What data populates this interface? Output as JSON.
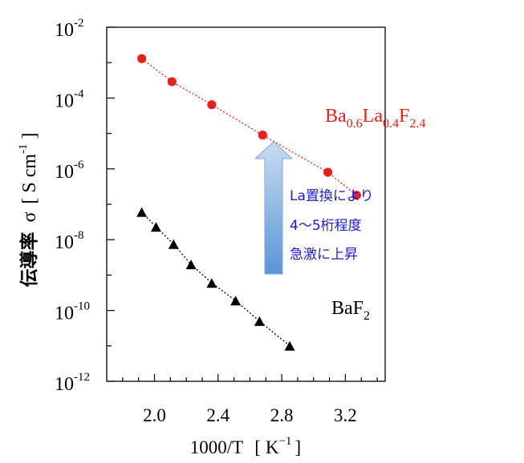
{
  "chart_data": {
    "type": "scatter",
    "x_label": "1000/T",
    "x_unit_base": "K",
    "x_unit_exp": "−1",
    "y_label_jp": "伝導率",
    "y_label_sym": "σ",
    "y_unit_base": "S cm",
    "y_unit_exp": "-1",
    "xlim": [
      1.7,
      3.45
    ],
    "ylim_exponent": [
      -12,
      -2
    ],
    "y_scale": "log",
    "x_ticks": [
      {
        "v": 2.0,
        "label": "2.0"
      },
      {
        "v": 2.4,
        "label": "2.4"
      },
      {
        "v": 2.8,
        "label": "2.8"
      },
      {
        "v": 3.2,
        "label": "3.2"
      }
    ],
    "y_ticks": [
      {
        "e": -2,
        "base": "10",
        "exp": "-2"
      },
      {
        "e": -4,
        "base": "10",
        "exp": "-4"
      },
      {
        "e": -6,
        "base": "10",
        "exp": "-6"
      },
      {
        "e": -8,
        "base": "10",
        "exp": "-8"
      },
      {
        "e": -10,
        "base": "10",
        "exp": "-10"
      },
      {
        "e": -12,
        "base": "10",
        "exp": "-12"
      }
    ],
    "series": [
      {
        "name_parts": [
          {
            "t": "Ba",
            "sub": false
          },
          {
            "t": "0.6",
            "sub": true
          },
          {
            "t": "La",
            "sub": false
          },
          {
            "t": "0.4",
            "sub": true
          },
          {
            "t": "F",
            "sub": false
          },
          {
            "t": "2.4",
            "sub": true
          }
        ],
        "marker": "circle",
        "color": "#e8201c",
        "points": [
          {
            "x": 1.92,
            "y": 0.0013
          },
          {
            "x": 2.11,
            "y": 0.00029
          },
          {
            "x": 2.36,
            "y": 6.5e-05
          },
          {
            "x": 2.68,
            "y": 9e-06
          },
          {
            "x": 3.09,
            "y": 8e-07
          },
          {
            "x": 3.27,
            "y": 1.8e-07
          }
        ]
      },
      {
        "name_parts": [
          {
            "t": "BaF",
            "sub": false
          },
          {
            "t": "2",
            "sub": true
          }
        ],
        "marker": "triangle",
        "color": "#000000",
        "points": [
          {
            "x": 1.92,
            "y": 6e-08
          },
          {
            "x": 2.01,
            "y": 2.3e-08
          },
          {
            "x": 2.12,
            "y": 7.5e-09
          },
          {
            "x": 2.23,
            "y": 2e-09
          },
          {
            "x": 2.36,
            "y": 6e-10
          },
          {
            "x": 2.51,
            "y": 1.9e-10
          },
          {
            "x": 2.66,
            "y": 5e-11
          },
          {
            "x": 2.85,
            "y": 1e-11
          }
        ]
      }
    ],
    "annotation": {
      "lines": [
        "La置換により",
        "4～5桁程度",
        "急激に上昇"
      ],
      "color": "#1a1ad6",
      "arrow_direction": "up",
      "arrow_color": "#5b9bd5"
    }
  }
}
